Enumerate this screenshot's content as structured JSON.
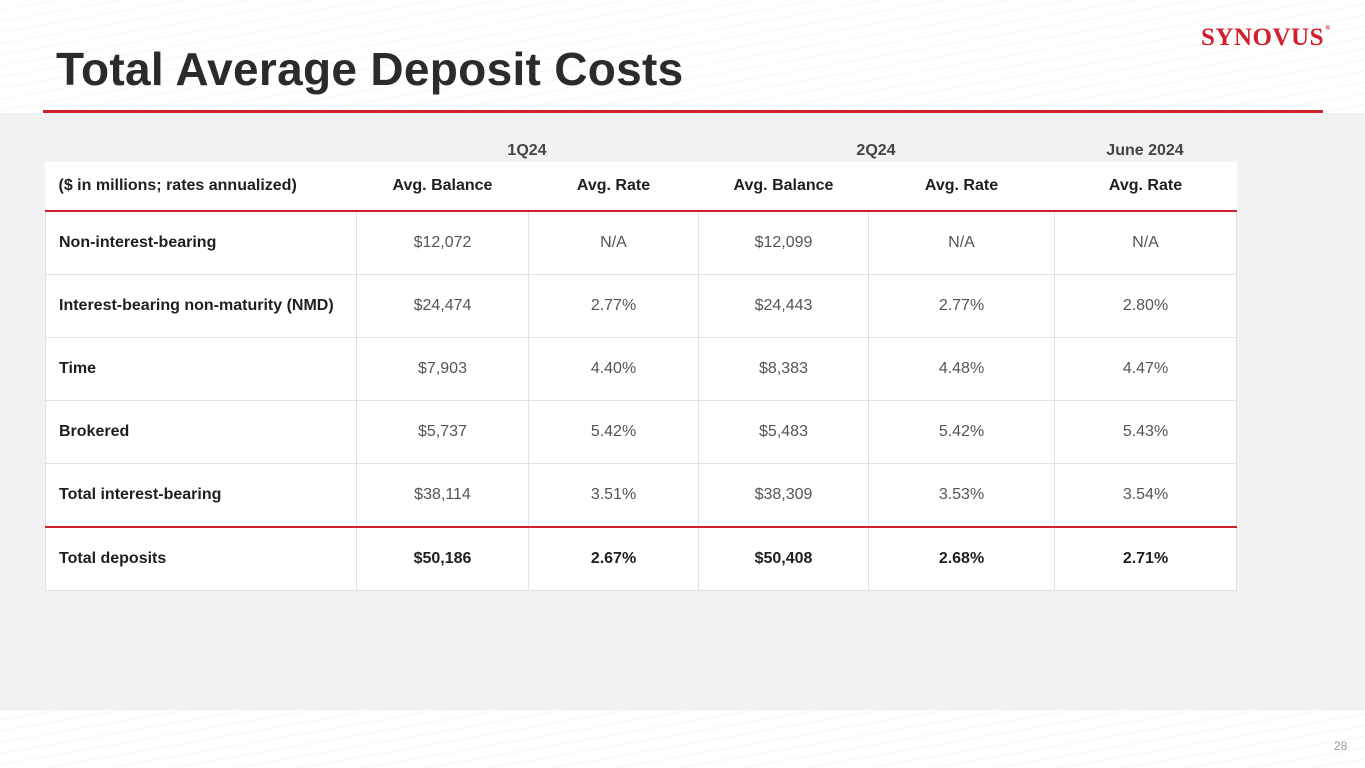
{
  "title": "Total Average Deposit Costs",
  "logo": {
    "text": "SYNOVUS",
    "mark": "®"
  },
  "periods": [
    "1Q24",
    "2Q24",
    "June 2024"
  ],
  "table": {
    "headers": [
      "($ in millions; rates annualized)",
      "Avg. Balance",
      "Avg. Rate",
      "Avg. Balance",
      "Avg. Rate",
      "Avg. Rate"
    ],
    "rows": [
      [
        "Non-interest-bearing",
        "$12,072",
        "N/A",
        "$12,099",
        "N/A",
        "N/A"
      ],
      [
        "Interest-bearing non-maturity (NMD)",
        "$24,474",
        "2.77%",
        "$24,443",
        "2.77%",
        "2.80%"
      ],
      [
        "Time",
        "$7,903",
        "4.40%",
        "$8,383",
        "4.48%",
        "4.47%"
      ],
      [
        "Brokered",
        "$5,737",
        "5.42%",
        "$5,483",
        "5.42%",
        "5.43%"
      ],
      [
        "Total interest-bearing",
        "$38,114",
        "3.51%",
        "$38,309",
        "3.53%",
        "3.54%"
      ],
      [
        "Total deposits",
        "$50,186",
        "2.67%",
        "$50,408",
        "2.68%",
        "2.71%"
      ]
    ]
  },
  "page_number": "28",
  "colors": {
    "accent": "#d0202c",
    "panel": "#f2f2f2"
  }
}
